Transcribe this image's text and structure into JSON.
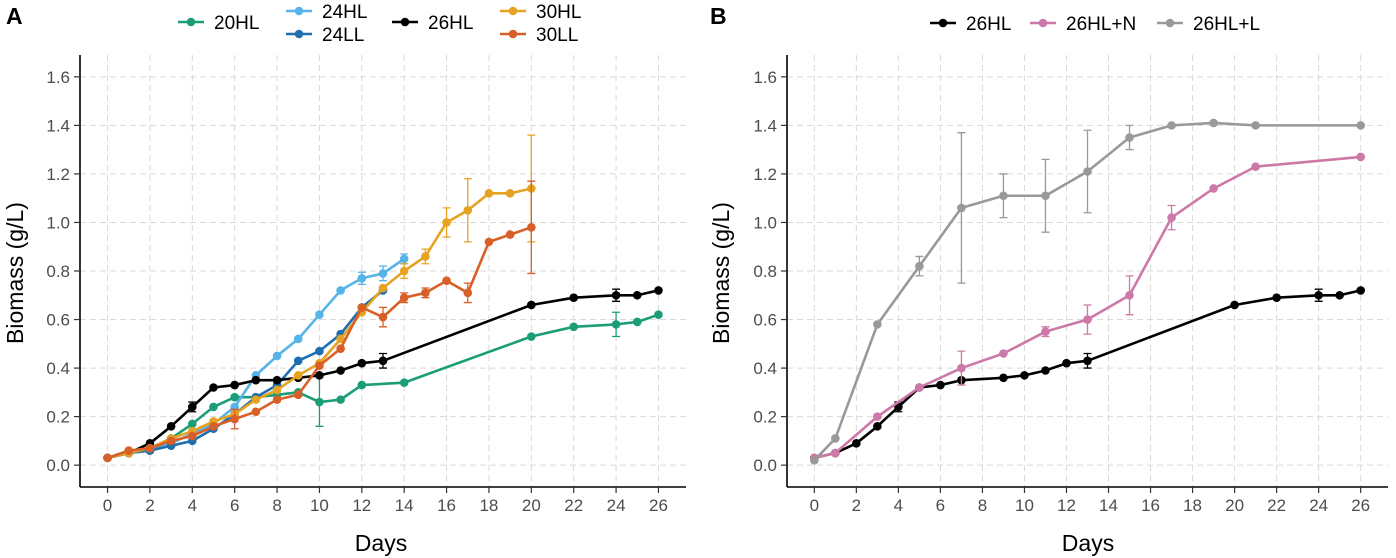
{
  "chart_data": [
    {
      "type": "line",
      "panel_label": "A",
      "xlabel": "Days",
      "ylabel": "Biomass (g/L)",
      "xlim": [
        -1.3,
        27.3
      ],
      "ylim": [
        -0.09,
        1.69
      ],
      "xticks": [
        0,
        2,
        4,
        6,
        8,
        10,
        12,
        14,
        16,
        18,
        20,
        22,
        24,
        26
      ],
      "yticks": [
        0.0,
        0.2,
        0.4,
        0.6,
        0.8,
        1.0,
        1.2,
        1.4,
        1.6
      ],
      "ytick_labels": [
        "0.0",
        "0.2",
        "0.4",
        "0.6",
        "0.8",
        "1.0",
        "1.2",
        "1.4",
        "1.6"
      ],
      "grid": true,
      "legend_position": "top",
      "series": [
        {
          "name": "20HL",
          "color": "#1b9e77",
          "x": [
            0,
            1,
            2,
            3,
            4,
            5,
            6,
            7,
            8,
            9,
            10,
            11,
            12,
            14,
            20,
            22,
            24,
            25,
            26
          ],
          "y": [
            0.03,
            0.05,
            0.07,
            0.11,
            0.17,
            0.24,
            0.28,
            0.28,
            0.29,
            0.3,
            0.26,
            0.27,
            0.33,
            0.34,
            0.53,
            0.57,
            0.58,
            0.59,
            0.62
          ],
          "err": [
            0,
            0,
            0,
            0,
            0,
            0,
            0,
            0,
            0,
            0,
            0.1,
            0,
            0,
            0,
            0,
            0,
            0.05,
            0,
            0
          ]
        },
        {
          "name": "24HL",
          "color": "#56b4e9",
          "x": [
            0,
            1,
            2,
            3,
            4,
            5,
            6,
            7,
            8,
            9,
            10,
            11,
            12,
            13,
            14
          ],
          "y": [
            0.03,
            0.05,
            0.06,
            0.09,
            0.13,
            0.17,
            0.24,
            0.37,
            0.45,
            0.52,
            0.62,
            0.72,
            0.77,
            0.79,
            0.85
          ],
          "err": [
            0,
            0,
            0,
            0,
            0,
            0,
            0,
            0,
            0,
            0,
            0,
            0,
            0.025,
            0.03,
            0.02
          ]
        },
        {
          "name": "24LL",
          "color": "#1f6fb0",
          "x": [
            0,
            1,
            2,
            3,
            4,
            5,
            6,
            7,
            8,
            9,
            10,
            11,
            12,
            13
          ],
          "y": [
            0.03,
            0.05,
            0.06,
            0.08,
            0.1,
            0.15,
            0.21,
            0.28,
            0.33,
            0.43,
            0.47,
            0.54,
            0.65,
            0.72
          ],
          "err": [
            0,
            0,
            0,
            0,
            0,
            0,
            0,
            0,
            0,
            0,
            0,
            0,
            0,
            0
          ]
        },
        {
          "name": "26HL",
          "color": "#000000",
          "x": [
            0,
            1,
            2,
            3,
            4,
            5,
            6,
            7,
            8,
            9,
            10,
            11,
            12,
            13,
            20,
            22,
            24,
            25,
            26
          ],
          "y": [
            0.03,
            0.05,
            0.09,
            0.16,
            0.24,
            0.32,
            0.33,
            0.35,
            0.35,
            0.36,
            0.37,
            0.39,
            0.42,
            0.43,
            0.66,
            0.69,
            0.7,
            0.7,
            0.72
          ],
          "err": [
            0,
            0,
            0,
            0,
            0.02,
            0,
            0,
            0,
            0,
            0,
            0,
            0,
            0,
            0.03,
            0,
            0,
            0.025,
            0,
            0
          ]
        },
        {
          "name": "30HL",
          "color": "#e6a321",
          "x": [
            0,
            1,
            2,
            3,
            4,
            5,
            6,
            7,
            8,
            9,
            10,
            11,
            12,
            13,
            14,
            15,
            16,
            17,
            18,
            19,
            20
          ],
          "y": [
            0.03,
            0.05,
            0.07,
            0.11,
            0.14,
            0.18,
            0.21,
            0.27,
            0.31,
            0.37,
            0.42,
            0.52,
            0.63,
            0.73,
            0.8,
            0.86,
            1.0,
            1.05,
            1.12,
            1.12,
            1.14
          ],
          "err": [
            0,
            0,
            0,
            0,
            0,
            0,
            0,
            0,
            0,
            0,
            0,
            0,
            0,
            0,
            0.03,
            0.03,
            0.06,
            0.13,
            0,
            0,
            0.22
          ]
        },
        {
          "name": "30LL",
          "color": "#d95f28",
          "x": [
            0,
            1,
            2,
            3,
            4,
            5,
            6,
            7,
            8,
            9,
            10,
            11,
            12,
            13,
            14,
            15,
            16,
            17,
            18,
            19,
            20
          ],
          "y": [
            0.03,
            0.06,
            0.07,
            0.1,
            0.12,
            0.16,
            0.19,
            0.22,
            0.27,
            0.29,
            0.41,
            0.48,
            0.65,
            0.61,
            0.69,
            0.71,
            0.76,
            0.71,
            0.92,
            0.95,
            0.98
          ],
          "err": [
            0,
            0,
            0,
            0,
            0,
            0,
            0.04,
            0,
            0,
            0,
            0,
            0,
            0,
            0.04,
            0.02,
            0.02,
            0,
            0.04,
            0,
            0,
            0.19
          ]
        }
      ]
    },
    {
      "type": "line",
      "panel_label": "B",
      "xlabel": "Days",
      "ylabel": "Biomass (g/L)",
      "xlim": [
        -1.3,
        27.3
      ],
      "ylim": [
        -0.09,
        1.69
      ],
      "xticks": [
        0,
        2,
        4,
        6,
        8,
        10,
        12,
        14,
        16,
        18,
        20,
        22,
        24,
        26
      ],
      "yticks": [
        0.0,
        0.2,
        0.4,
        0.6,
        0.8,
        1.0,
        1.2,
        1.4,
        1.6
      ],
      "ytick_labels": [
        "0.0",
        "0.2",
        "0.4",
        "0.6",
        "0.8",
        "1.0",
        "1.2",
        "1.4",
        "1.6"
      ],
      "grid": true,
      "legend_position": "top",
      "series": [
        {
          "name": "26HL",
          "color": "#000000",
          "x": [
            0,
            1,
            2,
            3,
            4,
            5,
            6,
            7,
            9,
            10,
            11,
            12,
            13,
            20,
            22,
            24,
            25,
            26
          ],
          "y": [
            0.03,
            0.05,
            0.09,
            0.16,
            0.24,
            0.32,
            0.33,
            0.35,
            0.36,
            0.37,
            0.39,
            0.42,
            0.43,
            0.66,
            0.69,
            0.7,
            0.7,
            0.72
          ],
          "err": [
            0,
            0,
            0,
            0,
            0.02,
            0,
            0,
            0,
            0,
            0,
            0,
            0,
            0.03,
            0,
            0,
            0.025,
            0,
            0
          ]
        },
        {
          "name": "26HL+N",
          "color": "#cc79a7",
          "x": [
            0,
            1,
            3,
            5,
            7,
            9,
            11,
            13,
            15,
            17,
            19,
            21,
            26
          ],
          "y": [
            0.03,
            0.05,
            0.2,
            0.32,
            0.4,
            0.46,
            0.55,
            0.6,
            0.7,
            1.02,
            1.14,
            1.23,
            1.27
          ],
          "err": [
            0,
            0,
            0,
            0,
            0.07,
            0,
            0.02,
            0.06,
            0.08,
            0.05,
            0,
            0,
            0
          ]
        },
        {
          "name": "26HL+L",
          "color": "#999999",
          "x": [
            0,
            1,
            3,
            5,
            7,
            9,
            11,
            13,
            15,
            17,
            19,
            21,
            26
          ],
          "y": [
            0.02,
            0.11,
            0.58,
            0.82,
            1.06,
            1.11,
            1.11,
            1.21,
            1.35,
            1.4,
            1.41,
            1.4,
            1.4
          ],
          "err": [
            0,
            0,
            0,
            0.04,
            0.31,
            0.09,
            0.15,
            0.17,
            0.05,
            0,
            0,
            0,
            0
          ]
        }
      ]
    }
  ]
}
